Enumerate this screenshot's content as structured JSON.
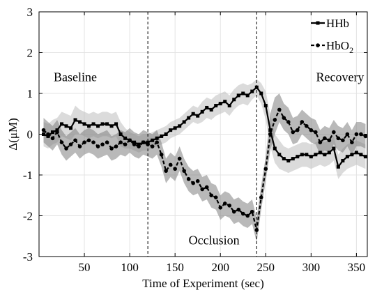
{
  "chart_data": {
    "type": "line",
    "title": "",
    "xlabel": "Time of Experiment (sec)",
    "ylabel": "Δ(μM)",
    "xlim": [
      0,
      362
    ],
    "ylim": [
      -3,
      3
    ],
    "x_ticks": [
      50,
      100,
      150,
      200,
      250,
      300,
      350
    ],
    "y_ticks": [
      -3,
      -2,
      -1,
      0,
      1,
      2,
      3
    ],
    "grid": true,
    "legend_position": "top-right",
    "vlines": [
      120,
      240
    ],
    "annotations": [
      {
        "text": "Baseline",
        "x": 40,
        "y": 1.3
      },
      {
        "text": "Occlusion",
        "x": 193,
        "y": -2.7
      },
      {
        "text": "Recovery",
        "x": 332,
        "y": 1.3
      }
    ],
    "series": [
      {
        "name": "HHb",
        "sub": "",
        "style": "solid",
        "marker": "square",
        "band_color": "#bdbdbd",
        "x": [
          5,
          10,
          15,
          20,
          25,
          30,
          35,
          40,
          45,
          50,
          55,
          60,
          65,
          70,
          75,
          80,
          85,
          90,
          95,
          100,
          105,
          110,
          115,
          120,
          125,
          130,
          135,
          140,
          145,
          150,
          155,
          160,
          165,
          170,
          175,
          180,
          185,
          190,
          195,
          200,
          205,
          210,
          215,
          220,
          225,
          230,
          235,
          240,
          245,
          250,
          255,
          260,
          265,
          270,
          275,
          280,
          285,
          290,
          295,
          300,
          305,
          310,
          315,
          320,
          325,
          330,
          335,
          340,
          345,
          350,
          355,
          360
        ],
        "y": [
          0.0,
          -0.05,
          0.05,
          0.1,
          0.25,
          0.2,
          0.15,
          0.35,
          0.3,
          0.25,
          0.2,
          0.25,
          0.2,
          0.25,
          0.25,
          0.2,
          0.25,
          0.0,
          -0.1,
          -0.15,
          -0.2,
          -0.25,
          -0.2,
          -0.2,
          -0.15,
          -0.1,
          -0.05,
          0.0,
          0.1,
          0.15,
          0.2,
          0.3,
          0.4,
          0.5,
          0.45,
          0.55,
          0.65,
          0.6,
          0.7,
          0.75,
          0.8,
          0.7,
          0.85,
          0.95,
          1.0,
          0.95,
          1.05,
          1.15,
          1.0,
          0.7,
          0.1,
          -0.35,
          -0.5,
          -0.6,
          -0.65,
          -0.6,
          -0.55,
          -0.5,
          -0.5,
          -0.55,
          -0.5,
          -0.45,
          -0.5,
          -0.45,
          -0.35,
          -0.8,
          -0.65,
          -0.55,
          -0.5,
          -0.45,
          -0.5,
          -0.55
        ],
        "lower": [
          -0.3,
          -0.35,
          -0.25,
          -0.2,
          -0.05,
          -0.1,
          -0.15,
          0.0,
          0.0,
          -0.05,
          -0.1,
          -0.05,
          -0.1,
          -0.05,
          -0.05,
          -0.1,
          -0.05,
          -0.3,
          -0.35,
          -0.35,
          -0.4,
          -0.45,
          -0.4,
          -0.4,
          -0.35,
          -0.3,
          -0.25,
          -0.2,
          -0.1,
          -0.05,
          0.0,
          0.1,
          0.2,
          0.3,
          0.25,
          0.3,
          0.4,
          0.35,
          0.45,
          0.5,
          0.55,
          0.45,
          0.6,
          0.7,
          0.75,
          0.7,
          0.85,
          0.95,
          0.75,
          0.35,
          -0.3,
          -0.7,
          -0.85,
          -0.9,
          -0.95,
          -0.9,
          -0.85,
          -0.8,
          -0.8,
          -0.85,
          -0.8,
          -0.75,
          -0.8,
          -0.75,
          -0.65,
          -1.1,
          -0.95,
          -0.85,
          -0.8,
          -0.75,
          -0.8,
          -0.85
        ],
        "upper": [
          0.3,
          0.25,
          0.35,
          0.4,
          0.55,
          0.5,
          0.45,
          0.7,
          0.6,
          0.55,
          0.5,
          0.55,
          0.5,
          0.55,
          0.55,
          0.5,
          0.55,
          0.3,
          0.15,
          0.05,
          0.0,
          -0.05,
          0.0,
          0.0,
          0.05,
          0.1,
          0.15,
          0.2,
          0.3,
          0.35,
          0.4,
          0.5,
          0.6,
          0.7,
          0.65,
          0.8,
          0.9,
          0.85,
          0.95,
          1.0,
          1.05,
          0.95,
          1.1,
          1.2,
          1.25,
          1.2,
          1.25,
          1.35,
          1.25,
          1.05,
          0.5,
          0.0,
          -0.15,
          -0.3,
          -0.35,
          -0.3,
          -0.25,
          -0.2,
          -0.2,
          -0.25,
          -0.2,
          -0.15,
          -0.2,
          -0.15,
          -0.05,
          -0.5,
          -0.35,
          -0.25,
          -0.2,
          -0.15,
          -0.2,
          -0.25
        ]
      },
      {
        "name": "HbO",
        "sub": "2",
        "style": "dashed",
        "marker": "circle",
        "band_color": "#7f7f7f",
        "x": [
          5,
          10,
          15,
          20,
          25,
          30,
          35,
          40,
          45,
          50,
          55,
          60,
          65,
          70,
          75,
          80,
          85,
          90,
          95,
          100,
          105,
          110,
          115,
          120,
          125,
          130,
          135,
          140,
          145,
          150,
          155,
          160,
          165,
          170,
          175,
          180,
          185,
          190,
          195,
          200,
          205,
          210,
          215,
          220,
          225,
          230,
          235,
          240,
          245,
          250,
          255,
          260,
          265,
          270,
          275,
          280,
          285,
          290,
          295,
          300,
          305,
          310,
          315,
          320,
          325,
          330,
          335,
          340,
          345,
          350,
          355,
          360
        ],
        "y": [
          0.1,
          0.0,
          -0.1,
          0.05,
          -0.2,
          -0.35,
          -0.25,
          -0.15,
          -0.3,
          -0.2,
          -0.15,
          -0.2,
          -0.3,
          -0.25,
          -0.2,
          -0.35,
          -0.3,
          -0.2,
          -0.25,
          -0.15,
          -0.25,
          -0.3,
          -0.2,
          -0.25,
          -0.3,
          -0.2,
          -0.5,
          -0.9,
          -0.75,
          -0.85,
          -0.6,
          -0.9,
          -1.1,
          -1.2,
          -1.15,
          -1.35,
          -1.3,
          -1.5,
          -1.55,
          -1.8,
          -1.7,
          -1.75,
          -1.9,
          -1.85,
          -1.95,
          -2.0,
          -1.9,
          -2.35,
          -1.55,
          -0.85,
          0.0,
          0.35,
          0.6,
          0.4,
          0.3,
          0.05,
          0.1,
          0.3,
          0.2,
          0.1,
          0.05,
          -0.2,
          -0.1,
          -0.15,
          0.05,
          -0.1,
          -0.15,
          0.0,
          -0.2,
          0.0,
          0.0,
          -0.05
        ],
        "lower": [
          -0.2,
          -0.3,
          -0.4,
          -0.25,
          -0.5,
          -0.65,
          -0.55,
          -0.45,
          -0.6,
          -0.5,
          -0.45,
          -0.5,
          -0.6,
          -0.55,
          -0.5,
          -0.65,
          -0.6,
          -0.5,
          -0.55,
          -0.45,
          -0.55,
          -0.6,
          -0.5,
          -0.55,
          -0.6,
          -0.5,
          -0.8,
          -1.2,
          -1.05,
          -1.15,
          -0.9,
          -1.2,
          -1.4,
          -1.5,
          -1.45,
          -1.65,
          -1.6,
          -1.8,
          -1.85,
          -2.1,
          -2.0,
          -2.05,
          -2.2,
          -2.15,
          -2.25,
          -2.3,
          -2.2,
          -2.65,
          -1.85,
          -1.15,
          -0.4,
          0.0,
          0.3,
          0.1,
          0.0,
          -0.25,
          -0.2,
          0.0,
          -0.1,
          -0.2,
          -0.25,
          -0.5,
          -0.4,
          -0.45,
          -0.25,
          -0.4,
          -0.45,
          -0.3,
          -0.5,
          -0.3,
          -0.3,
          -0.35
        ],
        "upper": [
          0.4,
          0.3,
          0.2,
          0.35,
          0.1,
          -0.05,
          0.05,
          0.15,
          0.0,
          0.1,
          0.15,
          0.1,
          0.0,
          0.05,
          0.1,
          -0.05,
          0.0,
          0.1,
          0.05,
          0.15,
          0.05,
          0.0,
          0.1,
          0.05,
          0.0,
          0.1,
          -0.2,
          -0.6,
          -0.45,
          -0.55,
          -0.3,
          -0.6,
          -0.8,
          -0.9,
          -0.85,
          -1.05,
          -1.0,
          -1.2,
          -1.25,
          -1.5,
          -1.4,
          -1.45,
          -1.6,
          -1.55,
          -1.65,
          -1.7,
          -1.6,
          -2.05,
          -1.25,
          -0.55,
          0.5,
          0.9,
          1.0,
          0.75,
          0.65,
          0.4,
          0.45,
          0.6,
          0.5,
          0.4,
          0.35,
          0.1,
          0.2,
          0.15,
          0.35,
          0.2,
          0.15,
          0.3,
          0.1,
          0.3,
          0.3,
          0.25
        ]
      }
    ]
  }
}
